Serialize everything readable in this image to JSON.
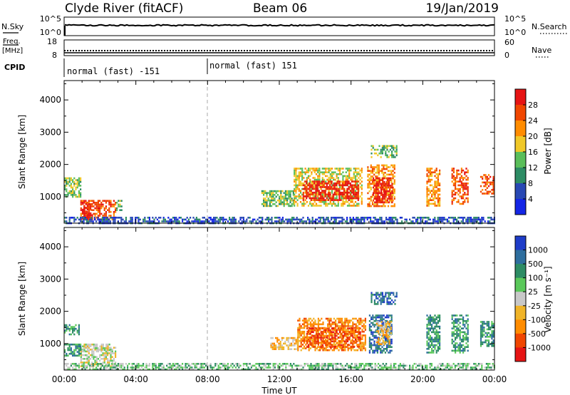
{
  "header": {
    "station": "Clyde River (fitACF)",
    "beam": "Beam 06",
    "date": "19/Jan/2019"
  },
  "status_panels": {
    "nsky_label": "N.Sky",
    "nsky_ticks": [
      "10^5",
      "10^0"
    ],
    "nsearch_label": "N.Search",
    "nsearch_ticks": [
      "10^5",
      "10^0"
    ],
    "freq_label": "Freq.",
    "freq_unit": "[MHz]",
    "freq_ticks": [
      "18",
      "8"
    ],
    "nave_label": "Nave",
    "nave_ticks": [
      "60",
      "0"
    ],
    "cpid_label": "CPID",
    "cpid_segments": [
      {
        "label": "normal (fast) -151",
        "start_hour": 0
      },
      {
        "label": "normal (fast) 151",
        "start_hour": 8
      }
    ]
  },
  "chart_data": [
    {
      "type": "heatmap",
      "name": "power",
      "ylabel": "Slant Range [km]",
      "xlabel": "",
      "x_ticks": [
        "00:00",
        "04:00",
        "08:00",
        "12:00",
        "16:00",
        "20:00",
        "00:00"
      ],
      "x_range_hours": [
        0,
        24
      ],
      "ylim": [
        180,
        4600
      ],
      "y_ticks": [
        "1000",
        "2000",
        "3000",
        "4000"
      ],
      "y_tick_values": [
        1000,
        2000,
        3000,
        4000
      ],
      "colorbar": {
        "label": "Power [dB]",
        "ticks": [
          "4",
          "8",
          "12",
          "16",
          "20",
          "24",
          "28"
        ],
        "colors": [
          "#1426e6",
          "#2848b4",
          "#2d8c64",
          "#5abe5a",
          "#f0c828",
          "#ff8c00",
          "#f04600",
          "#e61414"
        ]
      },
      "echo_regions": [
        {
          "t0": 0.9,
          "t1": 2.9,
          "r0": 300,
          "r1": 900,
          "level": 6
        },
        {
          "t0": 1.0,
          "t1": 1.6,
          "r0": 300,
          "r1": 800,
          "level": 7
        },
        {
          "t0": 0.0,
          "t1": 0.9,
          "r0": 1000,
          "r1": 1600,
          "level": 3
        },
        {
          "t0": 2.9,
          "t1": 3.2,
          "r0": 600,
          "r1": 900,
          "level": 3
        },
        {
          "t0": 0.0,
          "t1": 24.0,
          "r0": 180,
          "r1": 380,
          "level": 1
        },
        {
          "t0": 11.0,
          "t1": 12.8,
          "r0": 700,
          "r1": 1200,
          "level": 3
        },
        {
          "t0": 12.8,
          "t1": 16.6,
          "r0": 700,
          "r1": 1900,
          "level": 4
        },
        {
          "t0": 13.3,
          "t1": 16.4,
          "r0": 900,
          "r1": 1500,
          "level": 7
        },
        {
          "t0": 16.9,
          "t1": 18.4,
          "r0": 700,
          "r1": 2000,
          "level": 5
        },
        {
          "t0": 17.2,
          "t1": 18.3,
          "r0": 800,
          "r1": 1600,
          "level": 7
        },
        {
          "t0": 17.1,
          "t1": 18.5,
          "r0": 2200,
          "r1": 2600,
          "level": 3
        },
        {
          "t0": 20.2,
          "t1": 20.9,
          "r0": 700,
          "r1": 1900,
          "level": 5
        },
        {
          "t0": 21.6,
          "t1": 22.5,
          "r0": 800,
          "r1": 1900,
          "level": 6
        },
        {
          "t0": 23.2,
          "t1": 23.9,
          "r0": 1100,
          "r1": 1700,
          "level": 6
        }
      ]
    },
    {
      "type": "heatmap",
      "name": "velocity",
      "ylabel": "Slant Range [km]",
      "xlabel": "Time UT",
      "x_ticks": [
        "00:00",
        "04:00",
        "08:00",
        "12:00",
        "16:00",
        "20:00",
        "00:00"
      ],
      "x_range_hours": [
        0,
        24
      ],
      "ylim": [
        180,
        4600
      ],
      "y_ticks": [
        "1000",
        "2000",
        "3000",
        "4000"
      ],
      "y_tick_values": [
        1000,
        2000,
        3000,
        4000
      ],
      "colorbar": {
        "label": "Velocity [m s⁻¹]",
        "ticks": [
          "1000",
          "500",
          "100",
          "25",
          "-25",
          "-100",
          "-500",
          "-1000"
        ],
        "colors": [
          "#1e3cc8",
          "#2e6e9e",
          "#2d8c64",
          "#5ac85a",
          "#c8c8c8",
          "#f0b428",
          "#ff8c00",
          "#f04600",
          "#e61414"
        ]
      },
      "echo_regions": [
        {
          "t0": 0.9,
          "t1": 2.9,
          "r0": 300,
          "r1": 900,
          "level": 4
        },
        {
          "t0": 1.0,
          "t1": 2.5,
          "r0": 800,
          "r1": 1000,
          "level": 4
        },
        {
          "t0": 0.0,
          "t1": 0.9,
          "r0": 600,
          "r1": 1000,
          "level": 2
        },
        {
          "t0": 0.0,
          "t1": 0.8,
          "r0": 1300,
          "r1": 1600,
          "level": 2
        },
        {
          "t0": 0.0,
          "t1": 24.0,
          "r0": 180,
          "r1": 400,
          "level": 3
        },
        {
          "t0": 11.5,
          "t1": 13.0,
          "r0": 800,
          "r1": 1200,
          "level": 5
        },
        {
          "t0": 13.0,
          "t1": 16.8,
          "r0": 800,
          "r1": 1800,
          "level": 6
        },
        {
          "t0": 13.5,
          "t1": 16.5,
          "r0": 900,
          "r1": 1500,
          "level": 7
        },
        {
          "t0": 17.0,
          "t1": 18.3,
          "r0": 700,
          "r1": 1900,
          "level": 1
        },
        {
          "t0": 17.4,
          "t1": 18.2,
          "r0": 1000,
          "r1": 1700,
          "level": 5
        },
        {
          "t0": 17.1,
          "t1": 18.5,
          "r0": 2200,
          "r1": 2600,
          "level": 1
        },
        {
          "t0": 20.2,
          "t1": 20.9,
          "r0": 700,
          "r1": 1900,
          "level": 2
        },
        {
          "t0": 21.6,
          "t1": 22.5,
          "r0": 700,
          "r1": 1900,
          "level": 2
        },
        {
          "t0": 23.2,
          "t1": 23.9,
          "r0": 900,
          "r1": 1700,
          "level": 2
        }
      ]
    }
  ]
}
